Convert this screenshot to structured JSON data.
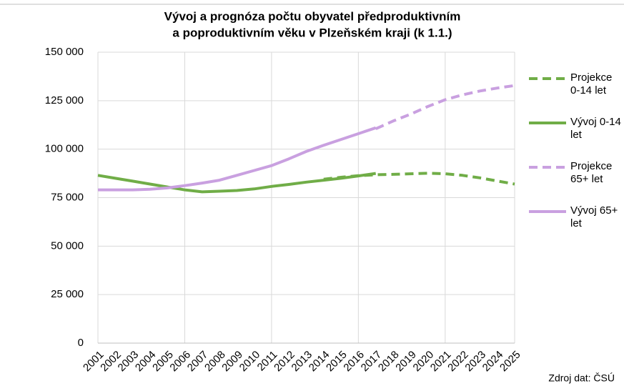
{
  "chart_data": {
    "type": "line",
    "title": [
      "Vývoj a prognóza počtu obyvatel předproduktivním",
      "a poproduktivním věku v Plzeňském kraji (k 1.1.)"
    ],
    "source": "Zdroj dat: ČSÚ",
    "categories": [
      "2001",
      "2002",
      "2003",
      "2004",
      "2005",
      "2006",
      "2007",
      "2008",
      "2009",
      "2010",
      "2011",
      "2012",
      "2013",
      "2014",
      "2015",
      "2016",
      "2017",
      "2018",
      "2019",
      "2020",
      "2021",
      "2022",
      "2023",
      "2024",
      "2025"
    ],
    "series": [
      {
        "name": "Projekce 0-14 let",
        "color": "#70ad47",
        "dashed": true,
        "values": [
          null,
          null,
          null,
          null,
          null,
          null,
          null,
          null,
          null,
          null,
          null,
          null,
          null,
          84500,
          85500,
          86300,
          86800,
          87000,
          87300,
          87600,
          87300,
          86500,
          85200,
          83600,
          82000
        ]
      },
      {
        "name": "Vývoj 0-14 let",
        "color": "#70ad47",
        "dashed": false,
        "values": [
          86500,
          85000,
          83500,
          82000,
          80500,
          79000,
          78000,
          78300,
          78700,
          79500,
          80800,
          81800,
          83000,
          84000,
          85000,
          86200,
          87500,
          null,
          null,
          null,
          null,
          null,
          null,
          null,
          null
        ]
      },
      {
        "name": "Projekce 65+ let",
        "color": "#c9a0e0",
        "dashed": true,
        "values": [
          null,
          null,
          null,
          null,
          null,
          null,
          null,
          null,
          null,
          null,
          null,
          null,
          null,
          null,
          null,
          null,
          110500,
          114500,
          118000,
          122000,
          125500,
          128000,
          130000,
          131500,
          132800
        ]
      },
      {
        "name": "Vývoj 65+ let",
        "color": "#c9a0e0",
        "dashed": false,
        "values": [
          79000,
          79000,
          79000,
          79300,
          80000,
          81200,
          82500,
          84000,
          86500,
          89000,
          91500,
          95000,
          98800,
          102000,
          105000,
          108000,
          111000,
          null,
          null,
          null,
          null,
          null,
          null,
          null,
          null
        ]
      }
    ],
    "ylim": [
      0,
      150000
    ],
    "yticks": [
      0,
      {
        "value": 25000,
        "label": "25 000"
      },
      {
        "value": 50000,
        "label": "50 000"
      },
      {
        "value": 75000,
        "label": "75 000"
      },
      {
        "value": 100000,
        "label": "100 000"
      },
      {
        "value": 125000,
        "label": "125 000"
      },
      {
        "value": 150000,
        "label": "150 000"
      }
    ],
    "grid": true,
    "legend": "right"
  }
}
